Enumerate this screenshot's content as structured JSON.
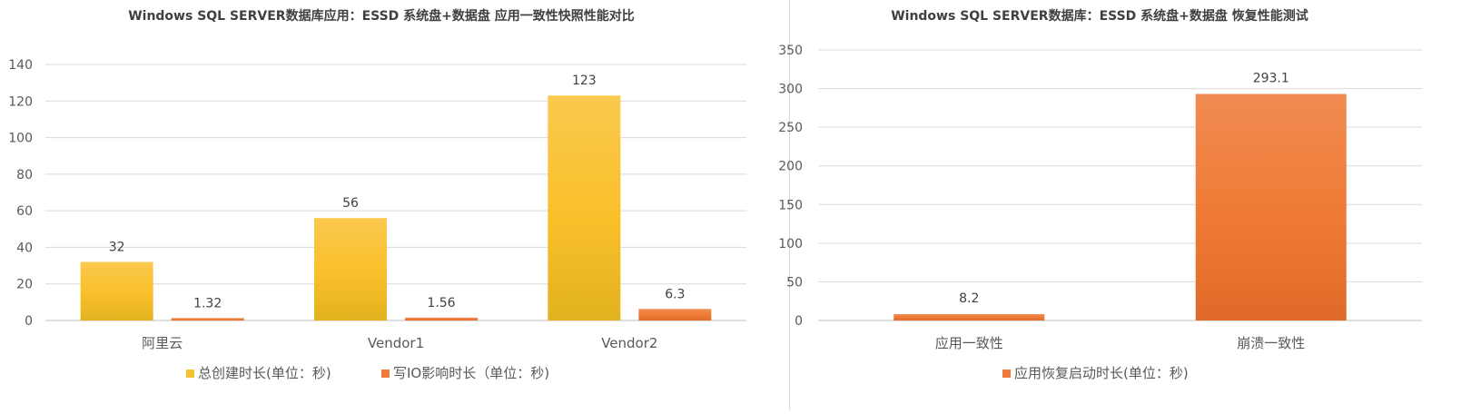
{
  "charts": {
    "left": {
      "title": "Windows SQL SERVER数据库应用：ESSD 系统盘+数据盘 应用一致性快照性能对比",
      "legend": [
        {
          "label": "总创建时长(单位：秒)",
          "color": "#f5c12f"
        },
        {
          "label": "写IO影响时长（单位：秒)",
          "color": "#ee7b3b"
        }
      ]
    },
    "right": {
      "title": "Windows SQL SERVER数据库：ESSD 系统盘+数据盘 恢复性能测试",
      "legend": [
        {
          "label": "应用恢复启动时长(单位：秒)",
          "color": "#ee7b3b"
        }
      ]
    }
  },
  "chart_data": [
    {
      "type": "bar",
      "title": "Windows SQL SERVER数据库应用：ESSD 系统盘+数据盘 应用一致性快照性能对比",
      "categories": [
        "阿里云",
        "Vendor1",
        "Vendor2"
      ],
      "series": [
        {
          "name": "总创建时长(单位：秒)",
          "values": [
            32,
            56,
            123
          ],
          "labels": [
            "32",
            "56",
            "123"
          ],
          "color": "#f5c12f"
        },
        {
          "name": "写IO影响时长（单位：秒)",
          "values": [
            1.32,
            1.56,
            6.3
          ],
          "labels": [
            "1.32",
            "1.56",
            "6.3"
          ],
          "color": "#ee7b3b"
        }
      ],
      "ylim": [
        0,
        140
      ],
      "yticks": [
        0,
        20,
        40,
        60,
        80,
        100,
        120,
        140
      ],
      "grid": true,
      "legend_position": "bottom"
    },
    {
      "type": "bar",
      "title": "Windows SQL SERVER数据库：ESSD 系统盘+数据盘 恢复性能测试",
      "categories": [
        "应用一致性",
        "崩溃一致性"
      ],
      "series": [
        {
          "name": "应用恢复启动时长(单位：秒)",
          "values": [
            8.2,
            293.1
          ],
          "labels": [
            "8.2",
            "293.1"
          ],
          "color": "#ee7b3b"
        }
      ],
      "ylim": [
        0,
        350
      ],
      "yticks": [
        0,
        50,
        100,
        150,
        200,
        250,
        300,
        350
      ],
      "grid": true,
      "legend_position": "bottom"
    }
  ]
}
